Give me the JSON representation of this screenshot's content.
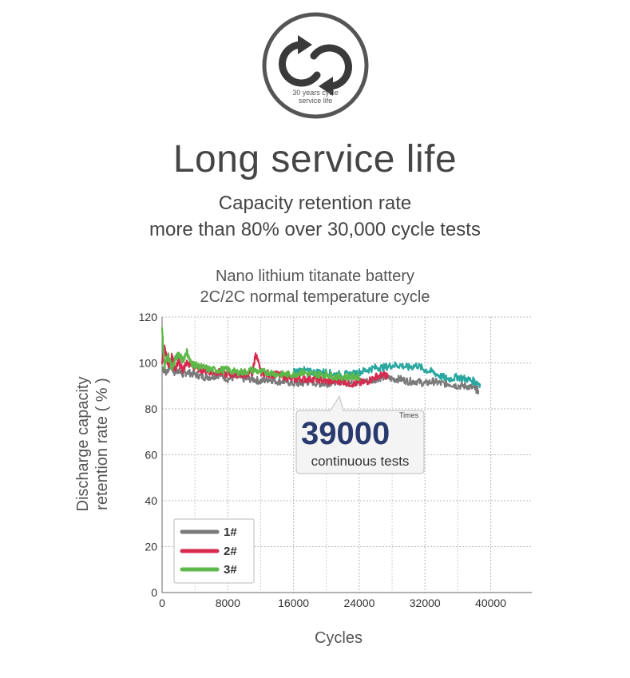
{
  "badge": {
    "line1": "30 years cycle",
    "line2": "service life",
    "icon": "cycle-arrows-icon"
  },
  "headline": "Long service life",
  "subtitle": {
    "line1": "Capacity retention rate",
    "line2": "more than 80% over 30,000 cycle tests"
  },
  "chart_title": {
    "line1": "Nano lithium titanate battery",
    "line2": "2C/2C normal temperature cycle"
  },
  "callout": {
    "number": "39000",
    "unit": "Times",
    "text": "continuous tests"
  },
  "chart_data": {
    "type": "line",
    "xlabel": "Cycles",
    "ylabel_line1": "Discharge capacity",
    "ylabel_line2": "retention rate ( % )",
    "xlim": [
      0,
      45000
    ],
    "ylim": [
      0,
      120
    ],
    "xticks": [
      0,
      8000,
      16000,
      24000,
      32000,
      40000
    ],
    "yticks": [
      0,
      20,
      40,
      60,
      80,
      100,
      120
    ],
    "grid": true,
    "legend_position": "bottom-left",
    "series": [
      {
        "name": "1#",
        "color": "#7a7a7a",
        "points": [
          [
            0,
            98
          ],
          [
            500,
            96
          ],
          [
            1000,
            99
          ],
          [
            1500,
            96
          ],
          [
            2000,
            97
          ],
          [
            2500,
            95
          ],
          [
            3000,
            96
          ],
          [
            4000,
            95
          ],
          [
            5000,
            94
          ],
          [
            6000,
            94
          ],
          [
            7000,
            95
          ],
          [
            8000,
            93
          ],
          [
            9000,
            94
          ],
          [
            10000,
            93
          ],
          [
            11000,
            93
          ],
          [
            12000,
            92
          ],
          [
            13000,
            93
          ],
          [
            14000,
            92
          ],
          [
            15000,
            92
          ],
          [
            16000,
            91
          ],
          [
            17000,
            91
          ],
          [
            18000,
            92
          ],
          [
            19000,
            91
          ],
          [
            20000,
            91
          ],
          [
            21000,
            92
          ],
          [
            22000,
            92
          ],
          [
            23000,
            91
          ],
          [
            24000,
            92
          ],
          [
            25000,
            92
          ],
          [
            26000,
            93
          ],
          [
            27000,
            94
          ],
          [
            28000,
            93
          ],
          [
            29000,
            93
          ],
          [
            30000,
            92
          ],
          [
            31000,
            92
          ],
          [
            32000,
            91
          ],
          [
            33000,
            92
          ],
          [
            34000,
            91
          ],
          [
            35000,
            91
          ],
          [
            36000,
            90
          ],
          [
            37000,
            90
          ],
          [
            38000,
            89
          ],
          [
            38500,
            88
          ]
        ]
      },
      {
        "name": "2#",
        "color": "#d62a4e",
        "points": [
          [
            0,
            100
          ],
          [
            300,
            107
          ],
          [
            800,
            98
          ],
          [
            1200,
            103
          ],
          [
            1600,
            97
          ],
          [
            2000,
            101
          ],
          [
            2500,
            97
          ],
          [
            3000,
            100
          ],
          [
            4000,
            98
          ],
          [
            5000,
            97
          ],
          [
            6000,
            96
          ],
          [
            7000,
            96
          ],
          [
            8000,
            95
          ],
          [
            9000,
            95
          ],
          [
            10000,
            95
          ],
          [
            11000,
            96
          ],
          [
            11400,
            104
          ],
          [
            12000,
            96
          ],
          [
            13000,
            95
          ],
          [
            14000,
            95
          ],
          [
            15000,
            94
          ],
          [
            16000,
            93
          ],
          [
            17000,
            93
          ],
          [
            18000,
            93
          ],
          [
            19000,
            93
          ],
          [
            20000,
            92
          ],
          [
            21000,
            92
          ],
          [
            22000,
            92
          ],
          [
            23000,
            91
          ],
          [
            24000,
            91
          ],
          [
            25000,
            92
          ],
          [
            26000,
            94
          ],
          [
            27000,
            95
          ],
          [
            27500,
            94
          ]
        ]
      },
      {
        "name": "3#",
        "color": "#5cb848",
        "points": [
          [
            0,
            115
          ],
          [
            300,
            99
          ],
          [
            800,
            103
          ],
          [
            1200,
            97
          ],
          [
            1600,
            102
          ],
          [
            2000,
            104
          ],
          [
            2500,
            101
          ],
          [
            3000,
            105
          ],
          [
            3500,
            100
          ],
          [
            4000,
            99
          ],
          [
            5000,
            98
          ],
          [
            6000,
            97
          ],
          [
            7000,
            97
          ],
          [
            8000,
            97
          ],
          [
            9000,
            96
          ],
          [
            10000,
            96
          ],
          [
            11000,
            97
          ],
          [
            12000,
            96
          ],
          [
            13000,
            96
          ],
          [
            14000,
            95
          ],
          [
            15000,
            95
          ],
          [
            16000,
            95
          ],
          [
            17000,
            96
          ],
          [
            18000,
            95
          ],
          [
            19000,
            95
          ],
          [
            20000,
            95
          ],
          [
            21000,
            94
          ],
          [
            22000,
            94
          ],
          [
            23000,
            94
          ],
          [
            24000,
            94
          ]
        ]
      },
      {
        "name": "",
        "color": "#2aa7a0",
        "points": [
          [
            16000,
            96
          ],
          [
            17000,
            97
          ],
          [
            18000,
            96
          ],
          [
            19000,
            96
          ],
          [
            20000,
            96
          ],
          [
            21000,
            95
          ],
          [
            22000,
            95
          ],
          [
            23000,
            95
          ],
          [
            24000,
            96
          ],
          [
            25000,
            97
          ],
          [
            26000,
            98
          ],
          [
            27000,
            98
          ],
          [
            28000,
            99
          ],
          [
            29000,
            99
          ],
          [
            30000,
            98
          ],
          [
            31000,
            99
          ],
          [
            32000,
            97
          ],
          [
            33000,
            96
          ],
          [
            34000,
            94
          ],
          [
            35000,
            93
          ],
          [
            36000,
            94
          ],
          [
            37000,
            93
          ],
          [
            38000,
            92
          ],
          [
            38700,
            91
          ]
        ]
      }
    ],
    "legend": [
      "1#",
      "2#",
      "3#"
    ]
  }
}
